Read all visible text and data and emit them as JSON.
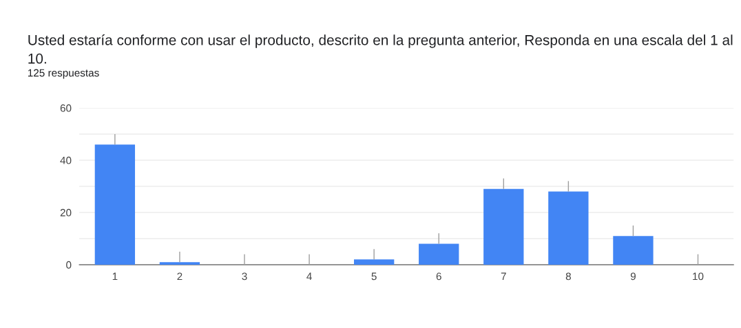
{
  "chart_data": {
    "type": "bar",
    "title": "Usted estaría conforme con usar el producto, descrito en la pregunta anterior, Responda en una escala del 1 al 10.",
    "subtitle": "125 respuestas",
    "categories": [
      "1",
      "2",
      "3",
      "4",
      "5",
      "6",
      "7",
      "8",
      "9",
      "10"
    ],
    "values": [
      46,
      1,
      0,
      0,
      2,
      8,
      29,
      28,
      11,
      0
    ],
    "errors": [
      [
        46,
        50
      ],
      [
        1,
        5
      ],
      [
        0,
        4
      ],
      [
        0,
        4
      ],
      [
        2,
        6
      ],
      [
        8,
        12
      ],
      [
        29,
        33
      ],
      [
        28,
        32
      ],
      [
        11,
        15
      ],
      [
        0,
        4
      ]
    ],
    "color": "#4285f4",
    "ylim": [
      0,
      60
    ],
    "yticks": [
      0,
      {
        "value": 10,
        "label": null
      },
      20,
      {
        "value": 30,
        "label": null
      },
      40,
      {
        "value": 50,
        "label": null
      },
      60
    ],
    "grid": "y"
  }
}
